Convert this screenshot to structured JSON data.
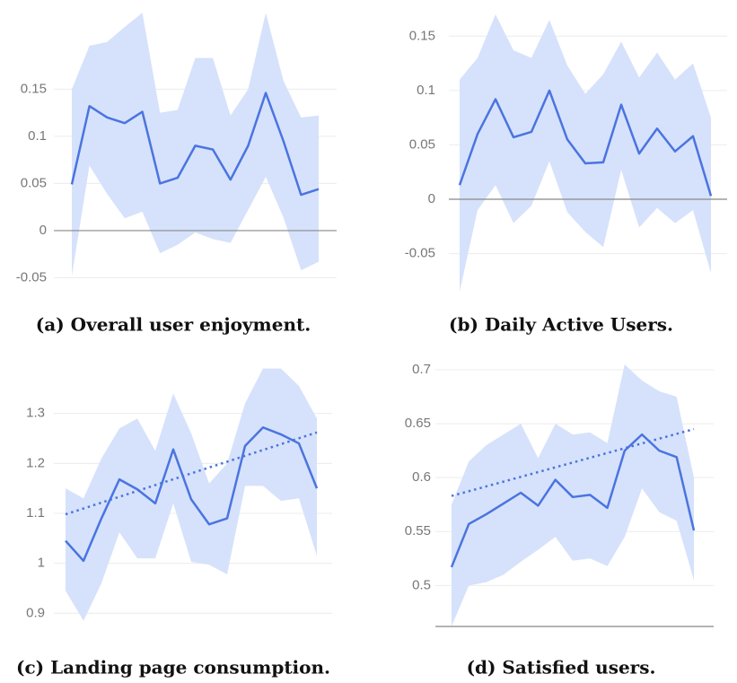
{
  "chart_data": [
    {
      "type": "line",
      "caption": "(a) Overall user enjoyment.",
      "line_color": "#4a74e0",
      "band_color": "#d6e2fb",
      "baseline": "zero",
      "grid": true,
      "values": [
        0.049,
        0.132,
        0.12,
        0.114,
        0.126,
        0.05,
        0.056,
        0.09,
        0.086,
        0.054,
        0.09,
        0.146,
        0.095,
        0.038,
        0.044
      ],
      "band_upper": [
        0.15,
        0.196,
        0.2,
        0.216,
        0.231,
        0.125,
        0.128,
        0.183,
        0.183,
        0.122,
        0.15,
        0.231,
        0.159,
        0.12,
        0.122
      ],
      "band_lower": [
        -0.048,
        0.069,
        0.039,
        0.013,
        0.02,
        -0.024,
        -0.015,
        -0.002,
        -0.009,
        -0.013,
        0.022,
        0.057,
        0.014,
        -0.042,
        -0.033
      ],
      "ylim": [
        -0.06,
        0.235
      ],
      "yticks": [
        -0.05,
        0,
        0.05,
        0.1,
        0.15
      ]
    },
    {
      "type": "line",
      "caption": "(b) Daily Active Users.",
      "line_color": "#4a74e0",
      "band_color": "#d6e2fb",
      "baseline": "zero",
      "grid": true,
      "values": [
        0.013,
        0.06,
        0.092,
        0.057,
        0.062,
        0.1,
        0.055,
        0.033,
        0.034,
        0.087,
        0.042,
        0.065,
        0.044,
        0.058,
        0.003
      ],
      "band_upper": [
        0.11,
        0.13,
        0.17,
        0.137,
        0.13,
        0.165,
        0.123,
        0.097,
        0.115,
        0.145,
        0.112,
        0.135,
        0.11,
        0.125,
        0.075
      ],
      "band_lower": [
        -0.085,
        -0.01,
        0.013,
        -0.022,
        -0.006,
        0.035,
        -0.012,
        -0.03,
        -0.044,
        0.027,
        -0.026,
        -0.008,
        -0.022,
        -0.01,
        -0.068
      ],
      "ylim": [
        -0.085,
        0.175
      ],
      "yticks": [
        -0.05,
        0,
        0.05,
        0.1,
        0.15
      ]
    },
    {
      "type": "line",
      "caption": "(c) Landing page consumption.",
      "line_color": "#4a74e0",
      "band_color": "#d6e2fb",
      "baseline": "none",
      "grid": true,
      "values": [
        1.045,
        1.005,
        1.09,
        1.168,
        1.148,
        1.12,
        1.228,
        1.128,
        1.078,
        1.09,
        1.235,
        1.272,
        1.258,
        1.24,
        1.15
      ],
      "band_upper": [
        1.15,
        1.13,
        1.21,
        1.27,
        1.29,
        1.225,
        1.34,
        1.26,
        1.16,
        1.2,
        1.32,
        1.39,
        1.39,
        1.355,
        1.29
      ],
      "band_lower": [
        0.945,
        0.885,
        0.96,
        1.062,
        1.01,
        1.01,
        1.12,
        1.003,
        0.997,
        0.978,
        1.155,
        1.155,
        1.125,
        1.13,
        1.015
      ],
      "trend": [
        1.098,
        1.262
      ],
      "ylim": [
        0.87,
        1.4
      ],
      "yticks": [
        0.9,
        1,
        1.1,
        1.2,
        1.3
      ]
    },
    {
      "type": "line",
      "caption": "(d) Satisfied users.",
      "line_color": "#4a74e0",
      "band_color": "#d6e2fb",
      "baseline": "bottom",
      "grid": true,
      "values": [
        0.517,
        0.557,
        0.566,
        0.576,
        0.586,
        0.574,
        0.598,
        0.582,
        0.584,
        0.572,
        0.625,
        0.64,
        0.625,
        0.619,
        0.551
      ],
      "band_upper": [
        0.575,
        0.615,
        0.63,
        0.64,
        0.65,
        0.618,
        0.65,
        0.64,
        0.642,
        0.632,
        0.705,
        0.69,
        0.68,
        0.675,
        0.6
      ],
      "band_lower": [
        0.462,
        0.5,
        0.503,
        0.51,
        0.522,
        0.533,
        0.545,
        0.523,
        0.525,
        0.518,
        0.545,
        0.59,
        0.568,
        0.56,
        0.505
      ],
      "trend": [
        0.583,
        0.645
      ],
      "ylim": [
        0.462,
        0.71
      ],
      "yticks": [
        0.5,
        0.55,
        0.6,
        0.65,
        0.7
      ]
    }
  ]
}
